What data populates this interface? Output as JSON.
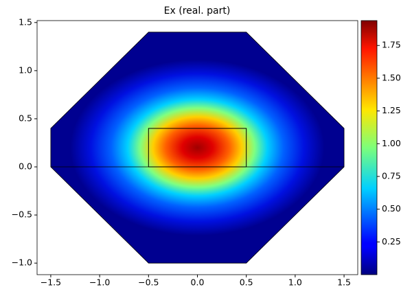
{
  "chart_data": {
    "type": "field",
    "title": "Ex (real. part)",
    "xlim": [
      -1.64,
      1.64
    ],
    "ylim": [
      -1.12,
      1.52
    ],
    "xticks": [
      {
        "value": -1.5,
        "label": "−1.5"
      },
      {
        "value": -1.0,
        "label": "−1.0"
      },
      {
        "value": -0.5,
        "label": "−0.5"
      },
      {
        "value": 0,
        "label": "0.0"
      },
      0.5,
      {
        "value": 1.0,
        "label": "1.0"
      },
      1.5
    ],
    "yticks": [
      {
        "value": -1.0,
        "label": "−1.0"
      },
      {
        "value": -0.5,
        "label": "−0.5"
      },
      {
        "value": 0,
        "label": "0.0"
      },
      0.5,
      {
        "value": 1.0,
        "label": "1.0"
      },
      1.5
    ],
    "clim": [
      0.0,
      1.94
    ],
    "cticks": [
      0.25,
      {
        "value": 0.5,
        "label": "0.50"
      },
      0.75,
      {
        "value": 1.0,
        "label": "1.00"
      },
      1.25,
      {
        "value": 1.5,
        "label": "1.50"
      },
      1.75
    ],
    "colormap": "jet",
    "boundary": {
      "x": [
        -1.5,
        -0.5,
        0.5,
        1.5,
        1.5,
        0.5,
        -0.5,
        -1.5
      ],
      "y": [
        0.4,
        1.4,
        1.4,
        0.4,
        0,
        -1.0,
        -1.0,
        0
      ]
    },
    "core": {
      "x": [
        -0.5,
        0.5,
        0.5,
        -0.5
      ],
      "y": [
        0,
        0,
        0.4,
        0.4
      ]
    },
    "interface": {
      "x": [
        -1.5,
        1.5
      ],
      "y": [
        0,
        0
      ]
    }
  }
}
